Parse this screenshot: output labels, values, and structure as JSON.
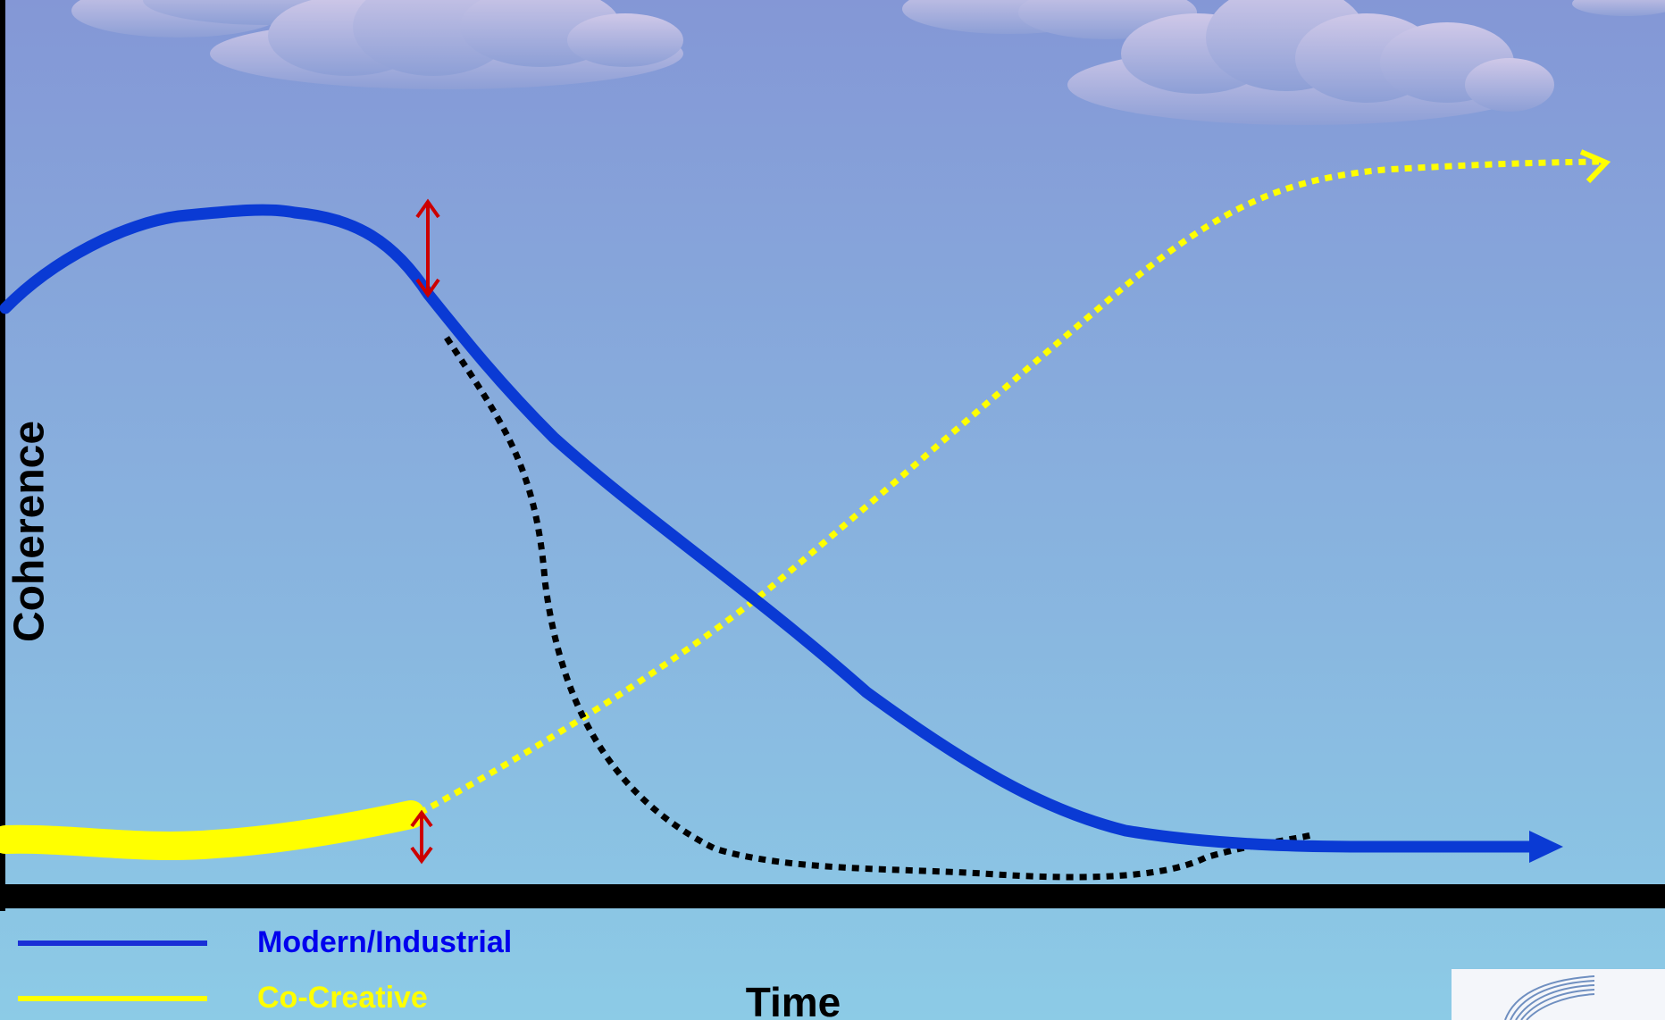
{
  "diagram": {
    "y_axis_label": "Coherence",
    "x_axis_label": "Time",
    "legend": [
      {
        "label": "Modern/Industrial",
        "color": "#0000ee",
        "line_color": "#1a2fd6"
      },
      {
        "label": "Co-Creative",
        "color": "#ffff00",
        "line_color": "#ffff00"
      }
    ],
    "colors": {
      "sky_top": "#8497d6",
      "sky_bottom": "#8ccbe6",
      "modern_curve": "#0a3ad4",
      "cocreative_curve": "#ffff00",
      "collapse_curve": "#000000",
      "gap_arrows": "#cc0000",
      "axis": "#000000"
    },
    "logo_icon": "feather-logo-icon"
  }
}
